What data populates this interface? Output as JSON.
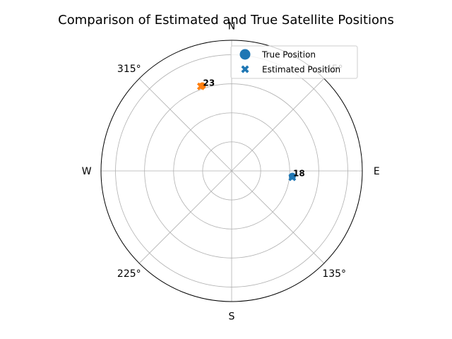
{
  "chart_data": {
    "type": "scatter",
    "projection": "polar",
    "title": "Comparison of Estimated and True Satellite Positions",
    "azimuth_direction": "clockwise",
    "zero_location": "N",
    "direction_labels": [
      {
        "azimuth": 0,
        "text": "N"
      },
      {
        "azimuth": 45,
        "text": "45°"
      },
      {
        "azimuth": 90,
        "text": "E"
      },
      {
        "azimuth": 135,
        "text": "135°"
      },
      {
        "azimuth": 180,
        "text": "S"
      },
      {
        "azimuth": 225,
        "text": "225°"
      },
      {
        "azimuth": 270,
        "text": "W"
      },
      {
        "azimuth": 315,
        "text": "315°"
      }
    ],
    "radial_lim": [
      0,
      90
    ],
    "radial_grid": [
      20,
      40,
      60,
      80
    ],
    "grid": true,
    "legend": {
      "placement": "top-right",
      "entries": [
        {
          "marker": "circle",
          "text": "True Position"
        },
        {
          "marker": "x",
          "text": "Estimated Position"
        }
      ]
    },
    "satellites": [
      {
        "id": "18",
        "color": "#1f77b4",
        "true_position": {
          "azimuth": 95,
          "radius": 42
        },
        "estimated_position": {
          "azimuth": 96,
          "radius": 42
        }
      },
      {
        "id": "23",
        "color": "#ff7f0e",
        "true_position": {
          "azimuth": 341,
          "radius": 62
        },
        "estimated_position": {
          "azimuth": 340,
          "radius": 62
        }
      }
    ]
  }
}
